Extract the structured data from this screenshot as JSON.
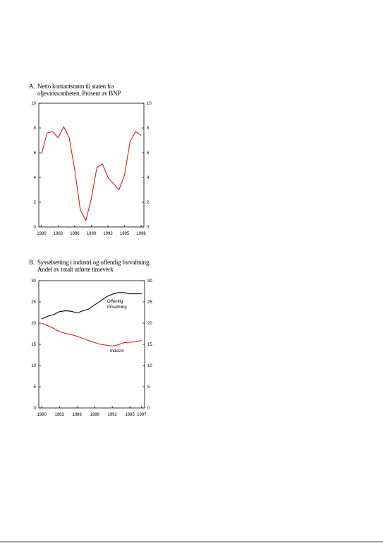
{
  "chart_data": [
    {
      "type": "line",
      "panel_letter": "A.",
      "title_line1": "Netto kontantstrøm til staten fra",
      "title_line2": "oljevirksomheten. Prosent av BNP",
      "x": [
        1980,
        1981,
        1982,
        1983,
        1984,
        1985,
        1986,
        1987,
        1988,
        1989,
        1990,
        1991,
        1992,
        1993,
        1994,
        1995,
        1996,
        1997,
        1998
      ],
      "xticks": [
        1980,
        1983,
        1986,
        1989,
        1992,
        1995,
        1998
      ],
      "xtick_labels": [
        "1980",
        "1983",
        "1986",
        "1989",
        "1992",
        "1995",
        "1998"
      ],
      "xlim": [
        1979.5,
        1998.5
      ],
      "ylim": [
        0,
        10
      ],
      "yticks": [
        0,
        2,
        4,
        6,
        8,
        10
      ],
      "ytick_labels": [
        "0",
        "2",
        "4",
        "6",
        "8",
        "10"
      ],
      "grid": false,
      "series": [
        {
          "color": "#d61f1f",
          "values": [
            5.9,
            7.6,
            7.7,
            7.2,
            8.1,
            7.2,
            4.6,
            1.4,
            0.5,
            2.3,
            4.8,
            5.1,
            4.0,
            3.5,
            3.0,
            4.2,
            6.9,
            7.7,
            7.4
          ]
        }
      ]
    },
    {
      "type": "line",
      "panel_letter": "B.",
      "title_line1": "Sysselsetting i industri og offentlig forvaltning.",
      "title_line2": "Andel av totalt utførte timeverk",
      "x": [
        1980,
        1981,
        1982,
        1983,
        1984,
        1985,
        1986,
        1987,
        1988,
        1989,
        1990,
        1991,
        1992,
        1993,
        1994,
        1995,
        1996,
        1997
      ],
      "xticks": [
        1980,
        1983,
        1986,
        1989,
        1992,
        1995,
        1997
      ],
      "xtick_labels": [
        "1980",
        "1983",
        "1986",
        "1989",
        "1992",
        "1995",
        "1997"
      ],
      "xlim": [
        1979.5,
        1997.5
      ],
      "ylim": [
        0,
        30
      ],
      "yticks": [
        0,
        5,
        10,
        15,
        20,
        25,
        30
      ],
      "ytick_labels": [
        "0",
        "5",
        "10",
        "15",
        "20",
        "25",
        "30"
      ],
      "grid": false,
      "series": [
        {
          "name": "Offentlig forvaltning",
          "label_line1": "Offentlig",
          "label_line2": "forvaltning",
          "color": "#000000",
          "values": [
            21.0,
            21.6,
            22.0,
            22.7,
            22.9,
            22.8,
            22.4,
            22.9,
            23.3,
            24.3,
            25.2,
            26.2,
            26.8,
            27.2,
            27.2,
            26.9,
            26.9,
            26.9
          ]
        },
        {
          "name": "Industri",
          "label_line1": "Industri",
          "color": "#d61f1f",
          "values": [
            20.0,
            19.4,
            18.8,
            18.0,
            17.6,
            17.3,
            16.9,
            16.4,
            15.9,
            15.4,
            15.0,
            14.8,
            14.6,
            14.9,
            15.4,
            15.5,
            15.6,
            15.9
          ]
        }
      ]
    }
  ]
}
